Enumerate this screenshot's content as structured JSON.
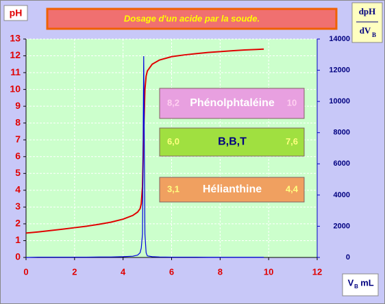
{
  "chart_data": {
    "type": "line",
    "title": "Dosage d'un acide  par la soude.",
    "ylabel": "pH",
    "y2label": {
      "top": "dpH",
      "bottom": "dV",
      "bottom_sub": "B"
    },
    "xlabel": {
      "main": "V",
      "sub": "B",
      "unit": "mL"
    },
    "x": [
      0,
      0.5,
      1,
      1.5,
      2,
      2.5,
      3,
      3.5,
      4,
      4.4,
      4.6,
      4.7,
      4.75,
      4.8,
      4.85,
      4.9,
      4.95,
      5,
      5.2,
      5.5,
      6,
      6.5,
      7,
      7.5,
      8,
      8.5,
      9,
      9.5,
      9.8
    ],
    "series": [
      {
        "color": "#e00000",
        "axis": "y",
        "values": [
          1.45,
          1.52,
          1.6,
          1.68,
          1.77,
          1.86,
          1.97,
          2.1,
          2.28,
          2.5,
          2.7,
          2.9,
          3.2,
          4.2,
          7.5,
          10.0,
          10.8,
          11.1,
          11.5,
          11.75,
          11.95,
          12.05,
          12.13,
          12.2,
          12.25,
          12.3,
          12.35,
          12.38,
          12.4
        ]
      },
      {
        "color": "#0000e0",
        "axis": "y2",
        "values": [
          0,
          20,
          20,
          20,
          20,
          20,
          30,
          30,
          50,
          80,
          150,
          300,
          600,
          1500,
          12900,
          1500,
          300,
          100,
          50,
          30,
          20,
          20,
          20,
          10,
          10,
          10,
          10,
          10,
          10
        ]
      }
    ],
    "xlim": [
      0,
      12
    ],
    "xticks": [
      0,
      2,
      4,
      6,
      8,
      10,
      12
    ],
    "ylim": [
      0,
      13
    ],
    "yticks": [
      0,
      1,
      2,
      3,
      4,
      5,
      6,
      7,
      8,
      9,
      10,
      11,
      12,
      13
    ],
    "y2lim": [
      0,
      14000
    ],
    "y2ticks": [
      0,
      2000,
      4000,
      6000,
      8000,
      10000,
      12000,
      14000
    ],
    "grid": true,
    "annotations": [
      {
        "low": "8,2",
        "label": "Phénolphtaléine",
        "high": "10",
        "color": "#e8a0e0"
      },
      {
        "low": "6,0",
        "label": "B,B,T",
        "high": "7,6",
        "color": "#a0e040"
      },
      {
        "low": "3,1",
        "label": "Hélianthine",
        "high": "4,4",
        "color": "#f0a060"
      }
    ]
  }
}
